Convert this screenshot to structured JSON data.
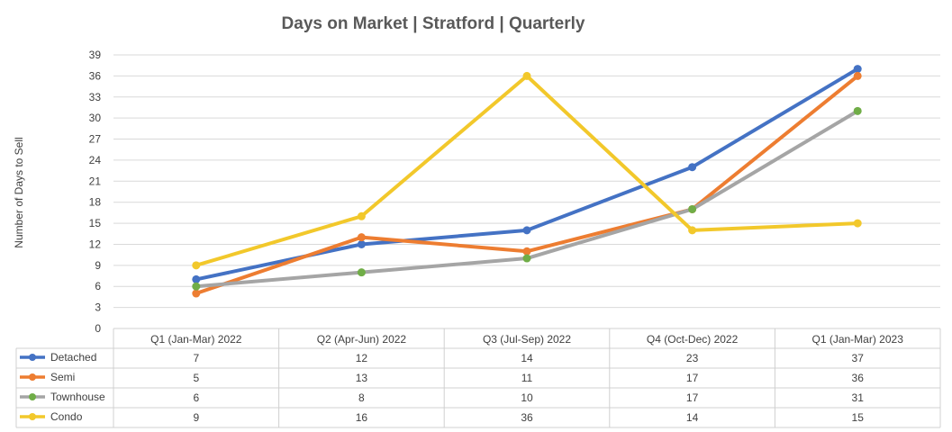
{
  "chart_data": {
    "type": "line",
    "title": "Days on Market | Stratford | Quarterly",
    "xlabel": "",
    "ylabel": "Number of Days to Sell",
    "ylim": [
      0,
      39
    ],
    "yticks": [
      0,
      3,
      6,
      9,
      12,
      15,
      18,
      21,
      24,
      27,
      30,
      33,
      36,
      39
    ],
    "grid": true,
    "legend": "data-table-bottom",
    "categories": [
      "Q1 (Jan-Mar) 2022",
      "Q2 (Apr-Jun) 2022",
      "Q3 (Jul-Sep) 2022",
      "Q4 (Oct-Dec) 2022",
      "Q1 (Jan-Mar) 2023"
    ],
    "series": [
      {
        "name": "Detached",
        "color": "#4472c4",
        "values": [
          7,
          12,
          14,
          23,
          37
        ]
      },
      {
        "name": "Semi",
        "color": "#ed7d31",
        "values": [
          5,
          13,
          11,
          17,
          36
        ]
      },
      {
        "name": "Townhouse",
        "color": "#a5a5a5",
        "marker_color": "#70ad47",
        "values": [
          6,
          8,
          10,
          17,
          31
        ]
      },
      {
        "name": "Condo",
        "color": "#f2c82b",
        "values": [
          9,
          16,
          36,
          14,
          15
        ]
      }
    ]
  }
}
